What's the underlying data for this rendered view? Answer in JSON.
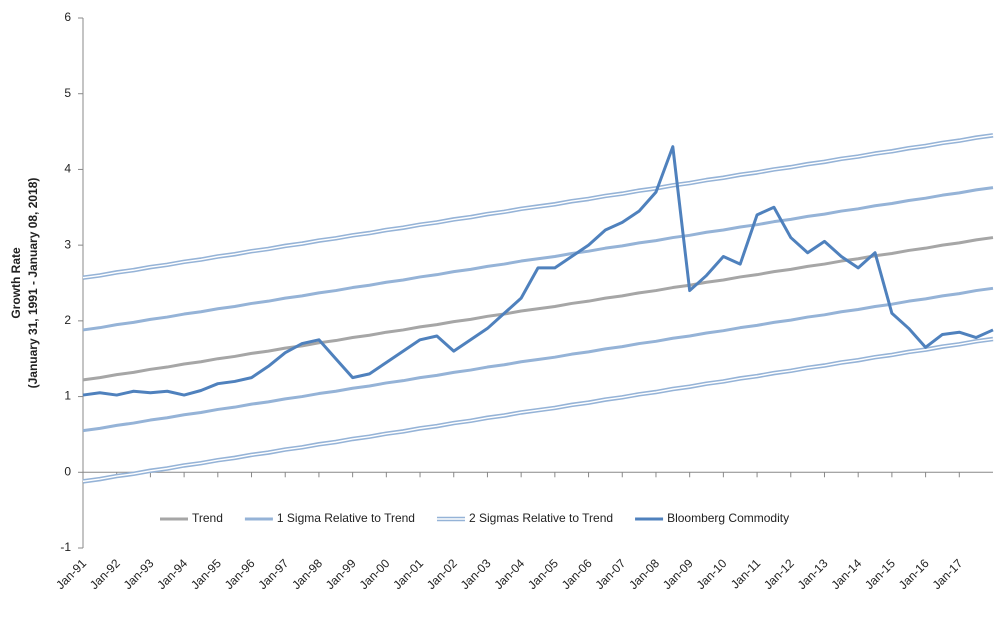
{
  "chart_data": {
    "type": "line",
    "ylabel": "Growth Rate",
    "ylabel_sub": "(January 31, 1991 - January 08, 2018)",
    "ylim": [
      -1,
      6
    ],
    "yticks": [
      -1,
      0,
      1,
      2,
      3,
      4,
      5,
      6
    ],
    "legend": "bottom-center",
    "categories": [
      "Jan-91",
      null,
      "Jan-92",
      null,
      "Jan-93",
      null,
      "Jan-94",
      null,
      "Jan-95",
      null,
      "Jan-96",
      null,
      "Jan-97",
      null,
      "Jan-98",
      null,
      "Jan-99",
      null,
      "Jan-00",
      null,
      "Jan-01",
      null,
      "Jan-02",
      null,
      "Jan-03",
      null,
      "Jan-04",
      null,
      "Jan-05",
      null,
      "Jan-06",
      null,
      "Jan-07",
      null,
      "Jan-08",
      null,
      "Jan-09",
      null,
      "Jan-10",
      null,
      "Jan-11",
      null,
      "Jan-12",
      null,
      "Jan-13",
      null,
      "Jan-14",
      null,
      "Jan-15",
      null,
      "Jan-16",
      null,
      "Jan-17",
      null,
      null
    ],
    "series": [
      {
        "name": "Trend",
        "color": "#a6a6a6",
        "style": "single",
        "values": [
          1.22,
          1.25,
          1.29,
          1.32,
          1.36,
          1.39,
          1.43,
          1.46,
          1.5,
          1.53,
          1.57,
          1.6,
          1.64,
          1.67,
          1.71,
          1.74,
          1.78,
          1.81,
          1.85,
          1.88,
          1.92,
          1.95,
          1.99,
          2.02,
          2.06,
          2.09,
          2.13,
          2.16,
          2.19,
          2.23,
          2.26,
          2.3,
          2.33,
          2.37,
          2.4,
          2.44,
          2.47,
          2.51,
          2.54,
          2.58,
          2.61,
          2.65,
          2.68,
          2.72,
          2.75,
          2.79,
          2.82,
          2.86,
          2.89,
          2.93,
          2.96,
          3.0,
          3.03,
          3.07,
          3.1
        ]
      },
      {
        "name": "1 Sigma Relative to Trend",
        "color": "#95b3d7",
        "style": "single",
        "values": [
          1.88,
          1.91,
          1.95,
          1.98,
          2.02,
          2.05,
          2.09,
          2.12,
          2.16,
          2.19,
          2.23,
          2.26,
          2.3,
          2.33,
          2.37,
          2.4,
          2.44,
          2.47,
          2.51,
          2.54,
          2.58,
          2.61,
          2.65,
          2.68,
          2.72,
          2.75,
          2.79,
          2.82,
          2.85,
          2.89,
          2.92,
          2.96,
          2.99,
          3.03,
          3.06,
          3.1,
          3.13,
          3.17,
          3.2,
          3.24,
          3.27,
          3.31,
          3.34,
          3.38,
          3.41,
          3.45,
          3.48,
          3.52,
          3.55,
          3.59,
          3.62,
          3.66,
          3.69,
          3.73,
          3.76
        ],
        "values_lower": [
          0.55,
          0.58,
          0.62,
          0.65,
          0.69,
          0.72,
          0.76,
          0.79,
          0.83,
          0.86,
          0.9,
          0.93,
          0.97,
          1.0,
          1.04,
          1.07,
          1.11,
          1.14,
          1.18,
          1.21,
          1.25,
          1.28,
          1.32,
          1.35,
          1.39,
          1.42,
          1.46,
          1.49,
          1.52,
          1.56,
          1.59,
          1.63,
          1.66,
          1.7,
          1.73,
          1.77,
          1.8,
          1.84,
          1.87,
          1.91,
          1.94,
          1.98,
          2.01,
          2.05,
          2.08,
          2.12,
          2.15,
          2.19,
          2.22,
          2.26,
          2.29,
          2.33,
          2.36,
          2.4,
          2.43
        ]
      },
      {
        "name": "2 Sigmas Relative to Trend",
        "color": "#95b3d7",
        "style": "double",
        "values": [
          2.57,
          2.6,
          2.64,
          2.67,
          2.71,
          2.74,
          2.78,
          2.81,
          2.85,
          2.88,
          2.92,
          2.95,
          2.99,
          3.02,
          3.06,
          3.09,
          3.13,
          3.16,
          3.2,
          3.23,
          3.27,
          3.3,
          3.34,
          3.37,
          3.41,
          3.44,
          3.48,
          3.51,
          3.54,
          3.58,
          3.61,
          3.65,
          3.68,
          3.72,
          3.75,
          3.79,
          3.82,
          3.86,
          3.89,
          3.93,
          3.96,
          4.0,
          4.03,
          4.07,
          4.1,
          4.14,
          4.17,
          4.21,
          4.24,
          4.28,
          4.31,
          4.35,
          4.38,
          4.42,
          4.45
        ],
        "values_lower": [
          -0.12,
          -0.09,
          -0.05,
          -0.02,
          0.02,
          0.05,
          0.09,
          0.12,
          0.16,
          0.19,
          0.23,
          0.26,
          0.3,
          0.33,
          0.37,
          0.4,
          0.44,
          0.47,
          0.51,
          0.54,
          0.58,
          0.61,
          0.65,
          0.68,
          0.72,
          0.75,
          0.79,
          0.82,
          0.85,
          0.89,
          0.92,
          0.96,
          0.99,
          1.03,
          1.06,
          1.1,
          1.13,
          1.17,
          1.2,
          1.24,
          1.27,
          1.31,
          1.34,
          1.38,
          1.41,
          1.45,
          1.48,
          1.52,
          1.55,
          1.59,
          1.62,
          1.66,
          1.69,
          1.73,
          1.76
        ]
      },
      {
        "name": "Bloomberg Commodity",
        "color": "#4f81bd",
        "style": "bold",
        "values": [
          1.02,
          1.05,
          1.02,
          1.07,
          1.05,
          1.07,
          1.02,
          1.08,
          1.17,
          1.2,
          1.25,
          1.4,
          1.58,
          1.7,
          1.75,
          1.5,
          1.25,
          1.3,
          1.45,
          1.6,
          1.75,
          1.8,
          1.6,
          1.75,
          1.9,
          2.1,
          2.3,
          2.7,
          2.7,
          2.85,
          3.0,
          3.2,
          3.3,
          3.45,
          3.7,
          4.3,
          2.4,
          2.6,
          2.85,
          2.75,
          3.4,
          3.5,
          3.1,
          2.9,
          3.05,
          2.85,
          2.7,
          2.9,
          2.1,
          1.9,
          1.65,
          1.82,
          1.85,
          1.78,
          1.88
        ]
      }
    ]
  }
}
